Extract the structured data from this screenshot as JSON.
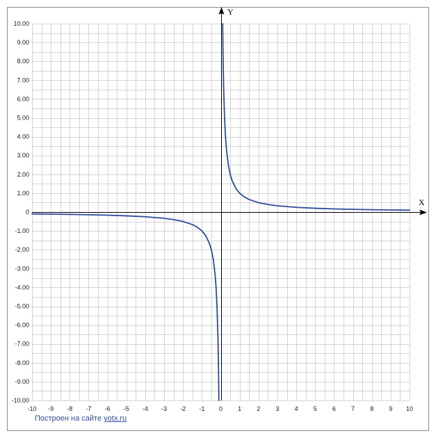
{
  "chart_data": {
    "type": "line",
    "function": "y = 1/x",
    "xlabel": "X",
    "ylabel": "Y",
    "xlim": [
      -10,
      10
    ],
    "ylim": [
      -10,
      10
    ],
    "x_ticks": [
      -10,
      -9,
      -8,
      -7,
      -6,
      -5,
      -4,
      -3,
      -2,
      -1,
      0,
      1,
      2,
      3,
      4,
      5,
      6,
      7,
      8,
      9,
      10
    ],
    "x_tick_labels": [
      "-10",
      "-9",
      "-8",
      "-7",
      "-6",
      "-5",
      "-4",
      "-3",
      "-2",
      "-1",
      "0",
      "1",
      "2",
      "3",
      "4",
      "5",
      "6",
      "7",
      "8",
      "9",
      "10"
    ],
    "y_ticks": [
      10,
      9,
      8,
      7,
      6,
      5,
      4,
      3,
      2,
      1,
      0,
      -1,
      -2,
      -3,
      -4,
      -5,
      -6,
      -7,
      -8,
      -9,
      -10
    ],
    "y_tick_labels": [
      "10.00",
      "9.00",
      "8.00",
      "7.00",
      "6.00",
      "5.00",
      "4.00",
      "3.00",
      "2.00",
      "1.00",
      "0",
      "-1.00",
      "-2.00",
      "-3.00",
      "-4.00",
      "-5.00",
      "-6.00",
      "-7.00",
      "-8.00",
      "-9.00",
      "-10.00"
    ],
    "grid": true,
    "grid_step_x": 0.5,
    "grid_step_y": 0.5,
    "series": [
      {
        "color": "#2b4a9a",
        "branches": [
          {
            "x": [
              -10,
              -9,
              -8,
              -7,
              -6,
              -5,
              -4,
              -3,
              -2.5,
              -2,
              -1.5,
              -1.25,
              -1,
              -0.8,
              -0.6,
              -0.5,
              -0.4,
              -0.3,
              -0.25,
              -0.2,
              -0.15,
              -0.125,
              -0.1
            ],
            "y": [
              -0.1,
              -0.111,
              -0.125,
              -0.143,
              -0.167,
              -0.2,
              -0.25,
              -0.333,
              -0.4,
              -0.5,
              -0.667,
              -0.8,
              -1,
              -1.25,
              -1.667,
              -2,
              -2.5,
              -3.333,
              -4,
              -5,
              -6.667,
              -8,
              -10
            ]
          },
          {
            "x": [
              0.1,
              0.125,
              0.15,
              0.2,
              0.25,
              0.3,
              0.4,
              0.5,
              0.6,
              0.8,
              1,
              1.25,
              1.5,
              2,
              2.5,
              3,
              4,
              5,
              6,
              7,
              8,
              9,
              10
            ],
            "y": [
              10,
              8,
              6.667,
              5,
              4,
              3.333,
              2.5,
              2,
              1.667,
              1.25,
              1,
              0.8,
              0.667,
              0.5,
              0.4,
              0.333,
              0.25,
              0.2,
              0.167,
              0.143,
              0.125,
              0.111,
              0.1
            ]
          }
        ]
      }
    ],
    "colors": {
      "grid": "#d4d4d4",
      "axis": "#000000",
      "frame": "#8a8a8a",
      "tick_text": "#1a1a1a"
    }
  },
  "credit": {
    "prefix": "Построен на сайте",
    "link_text": "yotx.ru"
  }
}
